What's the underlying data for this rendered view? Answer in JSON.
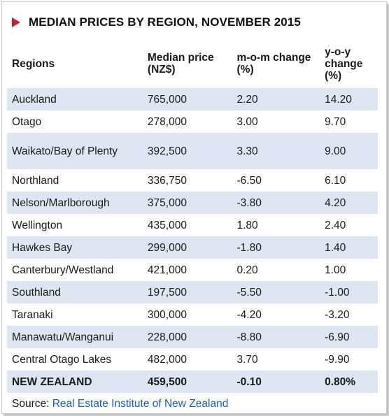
{
  "title": "MEDIAN PRICES BY REGION, NOVEMBER 2015",
  "headers": {
    "region": "Regions",
    "median": "Median price (NZ$)",
    "mom": "m-o-m change (%)",
    "yoy": "y-o-y change (%)"
  },
  "rows": [
    {
      "region": "Auckland",
      "median": "765,000",
      "mom": "2.20",
      "yoy": "14.20"
    },
    {
      "region": "Otago",
      "median": "278,000",
      "mom": "3.00",
      "yoy": "9.70"
    },
    {
      "region": "Waikato/Bay of Plenty",
      "median": "392,500",
      "mom": "3.30",
      "yoy": "9.00"
    },
    {
      "region": "Northland",
      "median": "336,750",
      "mom": "-6.50",
      "yoy": "6.10"
    },
    {
      "region": "Nelson/Marlborough",
      "median": "375,000",
      "mom": "-3.80",
      "yoy": "4.20"
    },
    {
      "region": "Wellington",
      "median": "435,000",
      "mom": "1.80",
      "yoy": "2.40"
    },
    {
      "region": "Hawkes Bay",
      "median": "299,000",
      "mom": "-1.80",
      "yoy": "1.40"
    },
    {
      "region": "Canterbury/Westland",
      "median": "421,000",
      "mom": "0.20",
      "yoy": "1.00"
    },
    {
      "region": "Southland",
      "median": "197,500",
      "mom": "-5.50",
      "yoy": "-1.00"
    },
    {
      "region": "Taranaki",
      "median": "300,000",
      "mom": "-4.20",
      "yoy": "-3.20"
    },
    {
      "region": "Manawatu/Wanganui",
      "median": "228,000",
      "mom": "-8.80",
      "yoy": "-6.90"
    },
    {
      "region": "Central Otago Lakes",
      "median": "482,000",
      "mom": "3.70",
      "yoy": "-9.90"
    }
  ],
  "total": {
    "region": "NEW ZEALAND",
    "median": "459,500",
    "mom": "-0.10",
    "yoy": "0.80%"
  },
  "source": {
    "label": "Source:",
    "link_text": "Real Estate Institute of New Zealand"
  },
  "colors": {
    "accent": "#c0262a",
    "row_shade": "#dde6f2",
    "link": "#1d5cb0"
  }
}
